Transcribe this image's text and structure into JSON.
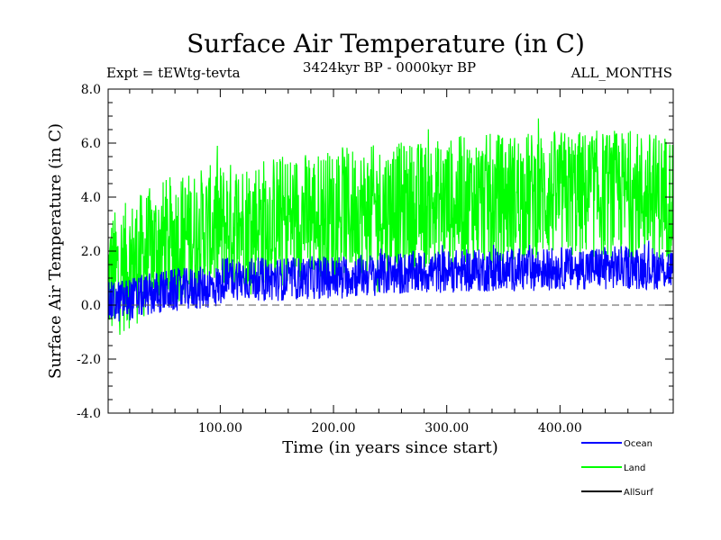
{
  "chart_data": {
    "type": "line",
    "title": "Surface Air Temperature (in C)",
    "subtitle_left": "Expt = tEWtg-tevta",
    "subtitle_center": "3424kyr BP - 0000kyr BP",
    "subtitle_right": "ALL_MONTHS",
    "xlabel": "Time (in years since start)",
    "ylabel": "Surface Air Temperature (in C)",
    "xlim": [
      1,
      500
    ],
    "ylim": [
      -4.0,
      8.0
    ],
    "x_ticks": [
      100,
      200,
      300,
      400
    ],
    "x_tick_labels": [
      "100.00",
      "200.00",
      "300.00",
      "400.00"
    ],
    "y_ticks": [
      -4,
      -2,
      0,
      2,
      4,
      6,
      8
    ],
    "y_tick_labels": [
      "-4.0",
      "-2.0",
      "0.0",
      "2.0",
      "4.0",
      "6.0",
      "8.0"
    ],
    "reference_line": {
      "y": 0.0,
      "style": "dashed"
    },
    "series": [
      {
        "name": "Land",
        "color": "#00ff00",
        "trend_x": [
          1,
          50,
          100,
          150,
          200,
          250,
          300,
          350,
          400,
          450,
          500
        ],
        "trend_mean": [
          1.0,
          2.3,
          2.9,
          3.2,
          3.4,
          3.6,
          3.8,
          4.0,
          4.1,
          4.1,
          4.0
        ],
        "amplitude": 2.4
      },
      {
        "name": "Ocean",
        "color": "#0000ff",
        "trend_x": [
          1,
          50,
          100,
          102,
          150,
          200,
          250,
          300,
          350,
          400,
          450,
          500
        ],
        "trend_mean": [
          0.05,
          0.5,
          0.7,
          1.0,
          0.95,
          1.05,
          1.15,
          1.25,
          1.3,
          1.35,
          1.4,
          1.35
        ],
        "amplitude": 0.8
      },
      {
        "name": "AllSurf",
        "color": "#000000",
        "trend_x": [],
        "trend_mean": [],
        "amplitude": 0
      }
    ],
    "legend": [
      "Ocean",
      "Land",
      "AllSurf"
    ]
  }
}
